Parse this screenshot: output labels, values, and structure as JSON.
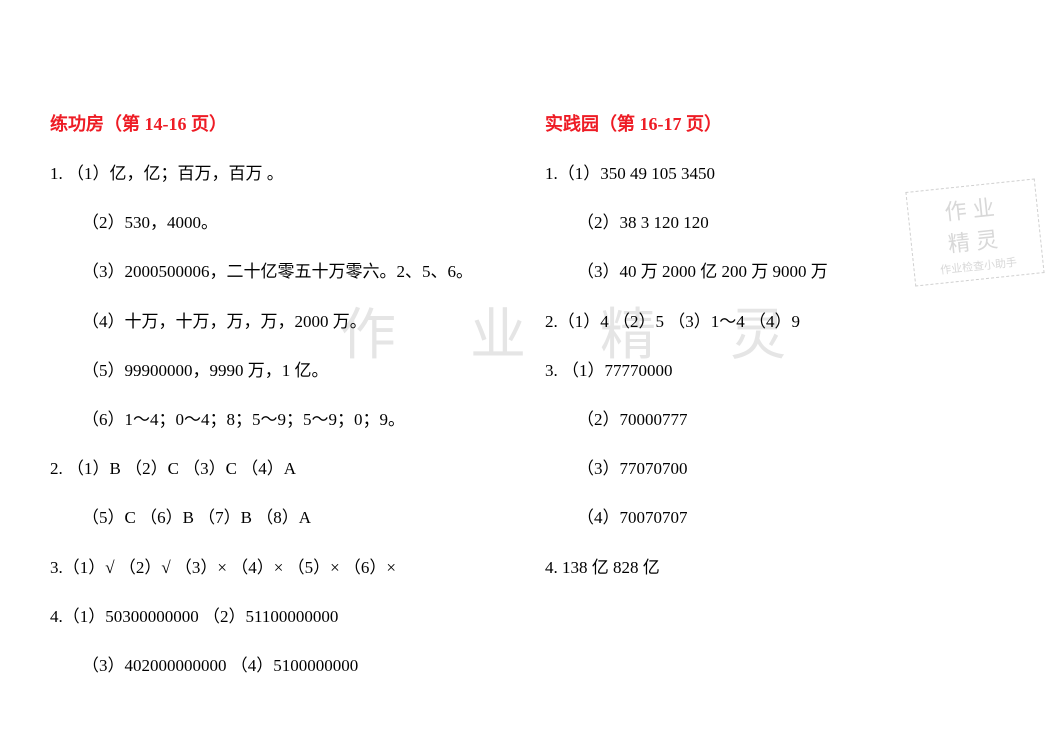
{
  "watermark": {
    "center": "作 业 精 灵",
    "corner_line1": "作业",
    "corner_line2": "精灵",
    "corner_line3": "作业检查小助手"
  },
  "left": {
    "title": "练功房（第 14-16 页）",
    "lines": [
      {
        "text": "1.  （1）亿，亿；百万，百万 。",
        "indent": false
      },
      {
        "text": "（2）530，4000。",
        "indent": true
      },
      {
        "text": "（3）2000500006，二十亿零五十万零六。2、5、6。",
        "indent": true
      },
      {
        "text": "（4）十万，十万，万，万，2000 万。",
        "indent": true
      },
      {
        "text": "（5）99900000，9990 万，1 亿。",
        "indent": true
      },
      {
        "text": "（6）1～4；0～4；8；5～9；5～9；0；9。",
        "indent": true
      },
      {
        "text": "2.  （1）B      （2）C      （3）C      （4）A",
        "indent": false
      },
      {
        "text": "（5）C      （6）B      （7）B      （8）A",
        "indent": true
      },
      {
        "text": "3.（1）√   （2）√   （3）×   （4）×   （5）×   （6）×",
        "indent": false
      },
      {
        "text": "4.（1）50300000000        （2）51100000000",
        "indent": false
      },
      {
        "text": "（3）402000000000       （4）5100000000",
        "indent": true
      }
    ]
  },
  "right": {
    "title": "实践园（第 16-17 页）",
    "lines": [
      {
        "text": "1.（1）350    49    105    3450",
        "indent": false
      },
      {
        "text": "（2）38    3    120    120",
        "indent": true
      },
      {
        "text": "（3）40 万    2000 亿    200 万    9000 万",
        "indent": true
      },
      {
        "text": "2.（1）4      （2）5     （3）1～4     （4）9",
        "indent": false
      },
      {
        "text": "3.  （1）77770000",
        "indent": false
      },
      {
        "text": "（2）70000777",
        "indent": true
      },
      {
        "text": "（3）77070700",
        "indent": true
      },
      {
        "text": "（4）70070707",
        "indent": true
      },
      {
        "text": "4.   138 亿       828 亿",
        "indent": false
      }
    ]
  },
  "colors": {
    "title": "#ee1c25",
    "text": "#000000",
    "background": "#ffffff",
    "watermark": "#e5e5e5"
  },
  "typography": {
    "title_fontsize": 18,
    "body_fontsize": 17,
    "watermark_center_fontsize": 56
  }
}
